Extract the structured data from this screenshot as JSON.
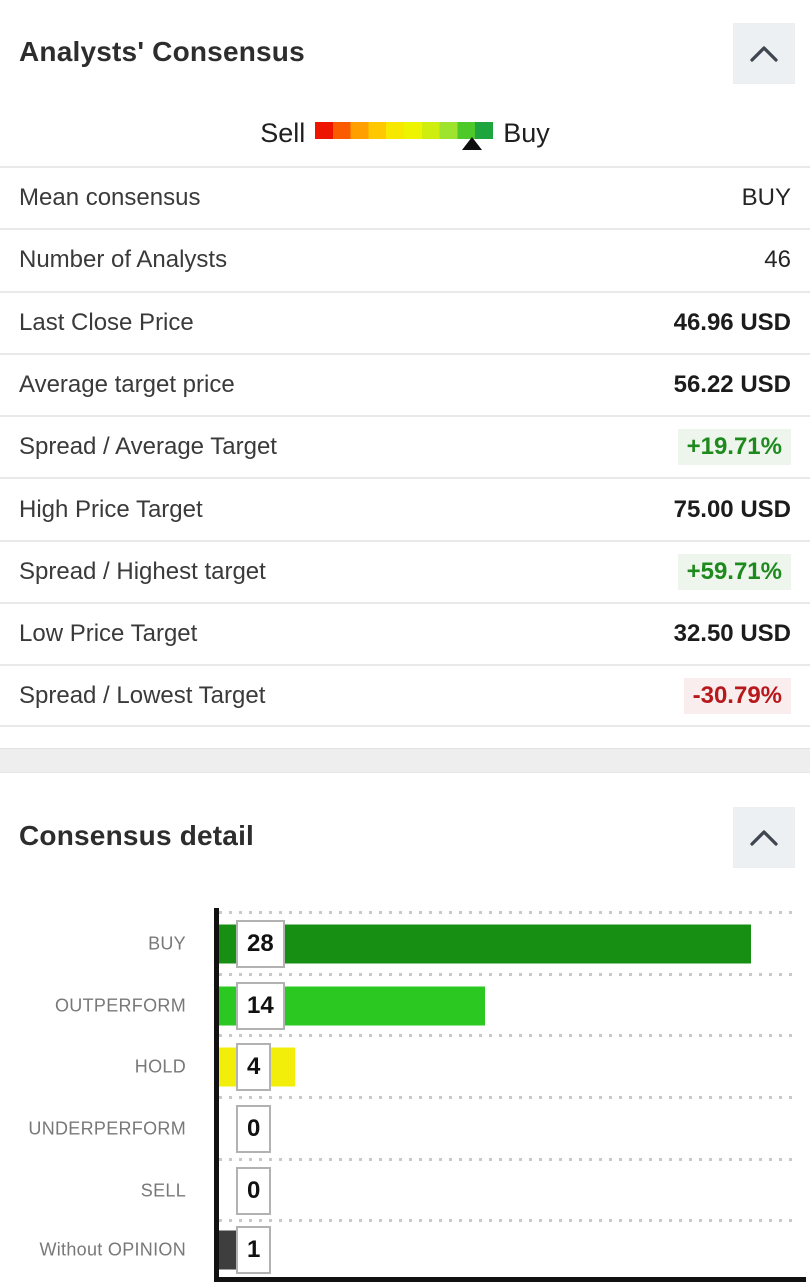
{
  "panel1": {
    "title": "Analysts' Consensus",
    "collapse_icon": "chevron-up",
    "gauge": {
      "left_label": "Sell",
      "right_label": "Buy",
      "segment_colors": [
        "#ee1500",
        "#fa5a00",
        "#ffa000",
        "#ffc800",
        "#f7e800",
        "#eef400",
        "#cfee10",
        "#9ee42e",
        "#4ec92a",
        "#1ea53e"
      ],
      "marker_position_pct": 88
    },
    "rows": [
      {
        "label": "Mean consensus",
        "value": "BUY",
        "bold": false,
        "trend": "none"
      },
      {
        "label": "Number of Analysts",
        "value": "46",
        "bold": false,
        "trend": "none"
      },
      {
        "label": "Last Close Price",
        "value": "46.96 USD",
        "bold": true,
        "trend": "none"
      },
      {
        "label": "Average target price",
        "value": "56.22 USD",
        "bold": true,
        "trend": "none"
      },
      {
        "label": "Spread / Average Target",
        "value": "+19.71%",
        "bold": true,
        "trend": "up"
      },
      {
        "label": "High Price Target",
        "value": "75.00 USD",
        "bold": true,
        "trend": "none"
      },
      {
        "label": "Spread / Highest target",
        "value": "+59.71%",
        "bold": true,
        "trend": "up"
      },
      {
        "label": "Low Price Target",
        "value": "32.50 USD",
        "bold": true,
        "trend": "none"
      },
      {
        "label": "Spread / Lowest Target",
        "value": "-30.79%",
        "bold": true,
        "trend": "down"
      }
    ]
  },
  "panel2": {
    "title": "Consensus detail",
    "collapse_icon": "chevron-up"
  },
  "chart_data": {
    "type": "bar",
    "orientation": "horizontal",
    "title": "Consensus detail",
    "categories": [
      "BUY",
      "OUTPERFORM",
      "HOLD",
      "UNDERPERFORM",
      "SELL",
      "Without OPINION"
    ],
    "values": [
      28,
      14,
      4,
      0,
      0,
      1
    ],
    "colors": [
      "#168f12",
      "#2bc822",
      "#f2ee0a",
      "#ffffff",
      "#ffffff",
      "#3e3e3e"
    ],
    "xlim": [
      0,
      30
    ],
    "grid": "dotted-row-separators",
    "value_labels": [
      "28",
      "14",
      "4",
      "0",
      "0",
      "1"
    ]
  },
  "colors": {
    "positive_text": "#1e8a1e",
    "positive_bg": "#edf5ec",
    "negative_text": "#b7181b",
    "negative_bg": "#f9edee",
    "separator_band": "#eeeeee",
    "collapse_button_bg": "#edf0f3",
    "axis": "#111111"
  }
}
